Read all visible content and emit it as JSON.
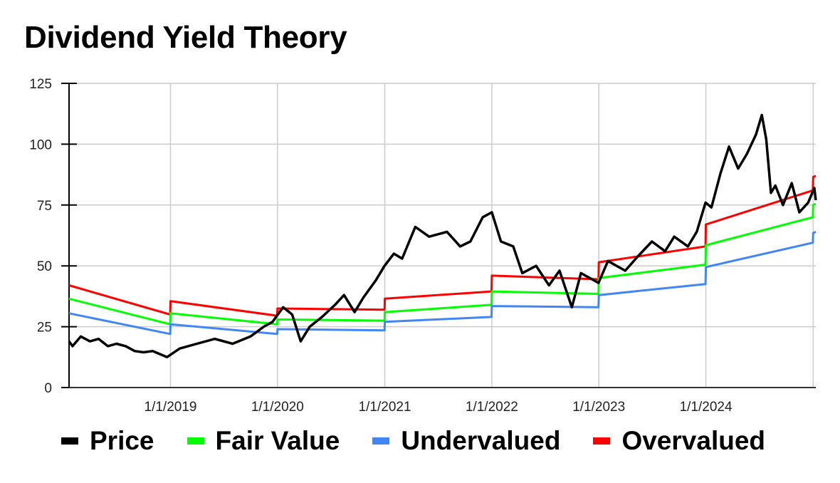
{
  "title": "Dividend Yield Theory",
  "colors": {
    "price": "#000000",
    "fair_value": "#00ff00",
    "undervalued": "#4285f4",
    "overvalued": "#ff0000",
    "grid": "#cccccc"
  },
  "legend": [
    {
      "label": "Price",
      "color": "#000000"
    },
    {
      "label": "Fair Value",
      "color": "#00ff00"
    },
    {
      "label": "Undervalued",
      "color": "#4285f4"
    },
    {
      "label": "Overvalued",
      "color": "#ff0000"
    }
  ],
  "chart_data": {
    "type": "line",
    "title": "Dividend Yield Theory",
    "xlabel": "",
    "ylabel": "",
    "ylim": [
      0,
      125
    ],
    "yticks": [
      0,
      25,
      50,
      75,
      100,
      125
    ],
    "xticks": [
      "1/1/2019",
      "1/1/2020",
      "1/1/2021",
      "1/1/2022",
      "1/1/2023",
      "1/1/2024"
    ],
    "xrange": [
      "2018-01-20",
      "2025-01-10"
    ],
    "grid": true,
    "legend_position": "bottom",
    "series": [
      {
        "name": "Overvalued",
        "color": "#ff0000",
        "points": [
          [
            "2018-01-20",
            42
          ],
          [
            "2018-12-31",
            30
          ],
          [
            "2019-01-01",
            35.5
          ],
          [
            "2019-12-31",
            29.5
          ],
          [
            "2020-01-01",
            32.5
          ],
          [
            "2020-12-31",
            32
          ],
          [
            "2021-01-01",
            36.5
          ],
          [
            "2021-12-31",
            39.5
          ],
          [
            "2022-01-01",
            46
          ],
          [
            "2022-12-31",
            44.5
          ],
          [
            "2023-01-01",
            51.5
          ],
          [
            "2023-12-31",
            58
          ],
          [
            "2024-01-01",
            67
          ],
          [
            "2024-12-31",
            81
          ],
          [
            "2025-01-01",
            86.5
          ],
          [
            "2025-01-10",
            87
          ]
        ]
      },
      {
        "name": "Fair Value",
        "color": "#00ff00",
        "points": [
          [
            "2018-01-20",
            36.5
          ],
          [
            "2018-12-31",
            26
          ],
          [
            "2019-01-01",
            30.5
          ],
          [
            "2019-12-31",
            26
          ],
          [
            "2020-01-01",
            28
          ],
          [
            "2020-12-31",
            27.5
          ],
          [
            "2021-01-01",
            31
          ],
          [
            "2021-12-31",
            34
          ],
          [
            "2022-01-01",
            39.5
          ],
          [
            "2022-12-31",
            38.5
          ],
          [
            "2023-01-01",
            45
          ],
          [
            "2023-12-31",
            50.5
          ],
          [
            "2024-01-01",
            58.5
          ],
          [
            "2024-12-31",
            70
          ],
          [
            "2025-01-01",
            75
          ],
          [
            "2025-01-10",
            75.5
          ]
        ]
      },
      {
        "name": "Undervalued",
        "color": "#4285f4",
        "points": [
          [
            "2018-01-20",
            30.5
          ],
          [
            "2018-12-31",
            22
          ],
          [
            "2019-01-01",
            26
          ],
          [
            "2019-12-31",
            22
          ],
          [
            "2020-01-01",
            24
          ],
          [
            "2020-12-31",
            23.5
          ],
          [
            "2021-01-01",
            27
          ],
          [
            "2021-12-31",
            29
          ],
          [
            "2022-01-01",
            33.5
          ],
          [
            "2022-12-31",
            33
          ],
          [
            "2023-01-01",
            38
          ],
          [
            "2023-12-31",
            42.5
          ],
          [
            "2024-01-01",
            49.5
          ],
          [
            "2024-12-31",
            59.5
          ],
          [
            "2025-01-01",
            63.5
          ],
          [
            "2025-01-10",
            64
          ]
        ]
      },
      {
        "name": "Price",
        "color": "#000000",
        "points": [
          [
            "2018-01-20",
            19
          ],
          [
            "2018-02-01",
            17
          ],
          [
            "2018-03-01",
            21
          ],
          [
            "2018-04-01",
            19
          ],
          [
            "2018-05-01",
            20
          ],
          [
            "2018-06-01",
            17
          ],
          [
            "2018-07-01",
            18
          ],
          [
            "2018-08-01",
            17
          ],
          [
            "2018-09-01",
            15
          ],
          [
            "2018-10-01",
            14.5
          ],
          [
            "2018-11-01",
            15
          ],
          [
            "2018-12-20",
            12.5
          ],
          [
            "2019-02-01",
            16
          ],
          [
            "2019-04-01",
            18
          ],
          [
            "2019-06-01",
            20
          ],
          [
            "2019-08-01",
            18
          ],
          [
            "2019-10-01",
            21
          ],
          [
            "2019-11-15",
            25
          ],
          [
            "2019-12-15",
            27
          ],
          [
            "2020-01-20",
            33
          ],
          [
            "2020-02-20",
            30
          ],
          [
            "2020-03-20",
            19
          ],
          [
            "2020-04-20",
            25
          ],
          [
            "2020-06-01",
            29
          ],
          [
            "2020-07-15",
            34
          ],
          [
            "2020-08-15",
            38
          ],
          [
            "2020-09-20",
            31
          ],
          [
            "2020-10-20",
            37
          ],
          [
            "2020-12-01",
            44
          ],
          [
            "2020-12-31",
            50
          ],
          [
            "2021-02-01",
            55
          ],
          [
            "2021-03-01",
            53
          ],
          [
            "2021-04-15",
            66
          ],
          [
            "2021-06-01",
            62
          ],
          [
            "2021-08-01",
            64
          ],
          [
            "2021-09-15",
            58
          ],
          [
            "2021-10-20",
            60
          ],
          [
            "2021-12-01",
            70
          ],
          [
            "2022-01-01",
            72
          ],
          [
            "2022-02-01",
            60
          ],
          [
            "2022-03-15",
            58
          ],
          [
            "2022-04-15",
            47
          ],
          [
            "2022-06-01",
            50
          ],
          [
            "2022-07-15",
            42
          ],
          [
            "2022-08-20",
            48
          ],
          [
            "2022-10-01",
            33
          ],
          [
            "2022-11-01",
            47
          ],
          [
            "2022-12-31",
            43
          ],
          [
            "2023-02-01",
            52
          ],
          [
            "2023-04-01",
            48
          ],
          [
            "2023-05-15",
            54
          ],
          [
            "2023-07-01",
            60
          ],
          [
            "2023-08-15",
            56
          ],
          [
            "2023-09-15",
            62
          ],
          [
            "2023-11-01",
            58
          ],
          [
            "2023-12-01",
            64
          ],
          [
            "2023-12-31",
            76
          ],
          [
            "2024-01-20",
            74
          ],
          [
            "2024-02-20",
            88
          ],
          [
            "2024-03-20",
            99
          ],
          [
            "2024-04-20",
            90
          ],
          [
            "2024-05-20",
            96
          ],
          [
            "2024-06-20",
            104
          ],
          [
            "2024-07-10",
            112
          ],
          [
            "2024-07-25",
            102
          ],
          [
            "2024-08-10",
            80
          ],
          [
            "2024-08-25",
            83
          ],
          [
            "2024-09-20",
            75
          ],
          [
            "2024-10-20",
            84
          ],
          [
            "2024-11-15",
            72
          ],
          [
            "2024-12-15",
            76
          ],
          [
            "2025-01-05",
            82
          ],
          [
            "2025-01-10",
            77
          ]
        ]
      }
    ]
  }
}
